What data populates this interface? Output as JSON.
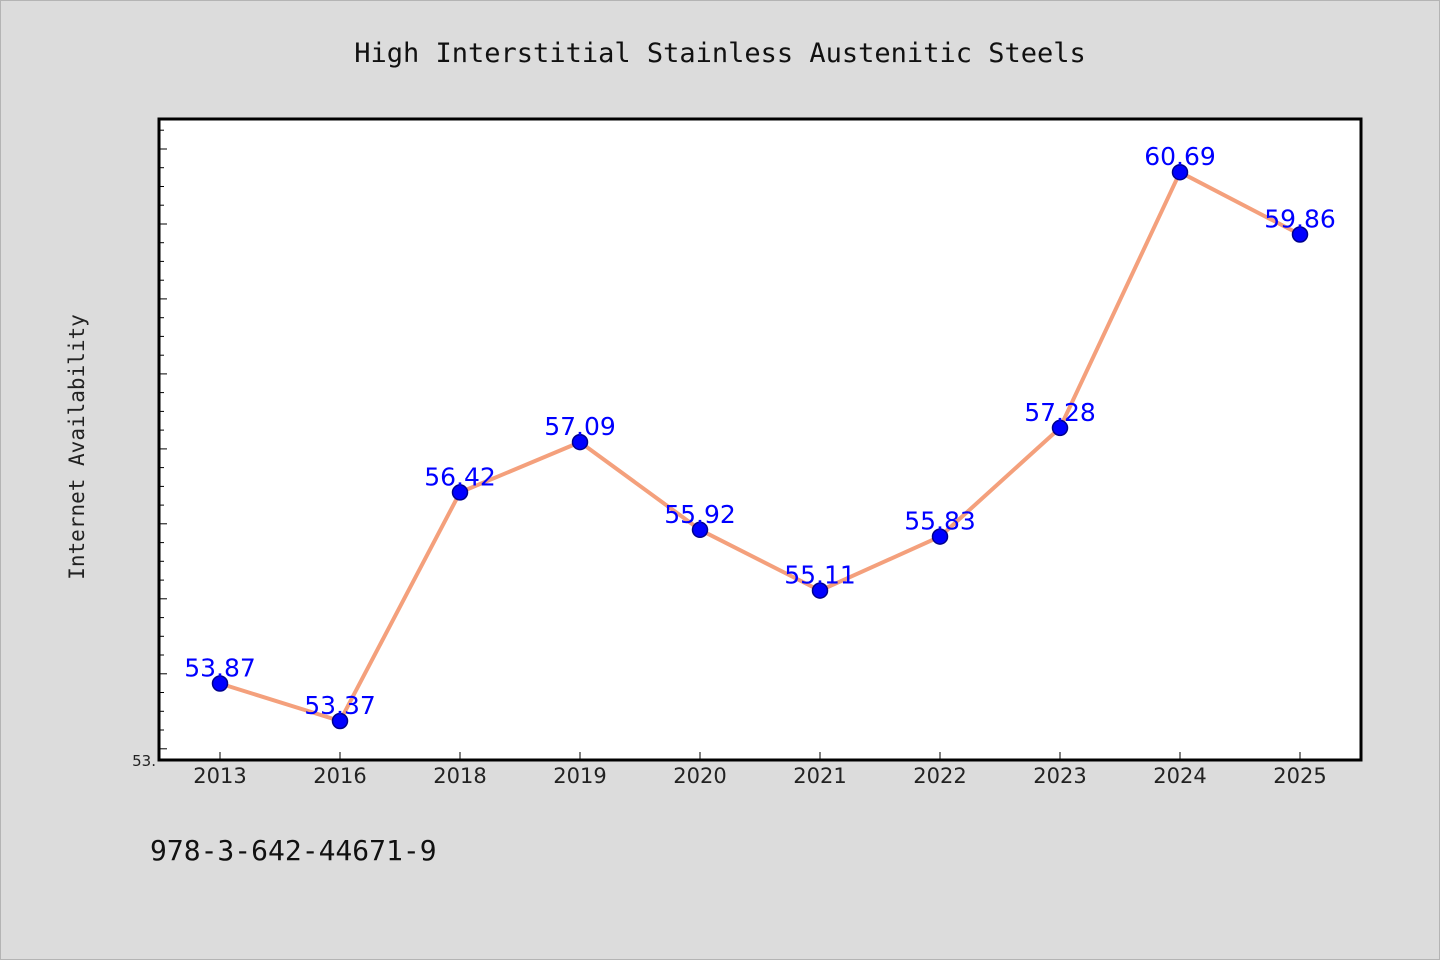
{
  "chart_data": {
    "type": "line",
    "title": "High Interstitial Stainless Austenitic Steels",
    "xlabel": "",
    "ylabel": "Internet Availability",
    "categories": [
      "2013",
      "2016",
      "2018",
      "2019",
      "2020",
      "2021",
      "2022",
      "2023",
      "2024",
      "2025"
    ],
    "series": [
      {
        "values": [
          53.87,
          53.37,
          56.42,
          57.09,
          55.92,
          55.11,
          55.83,
          57.28,
          60.69,
          59.86
        ]
      }
    ],
    "data_labels": [
      "53.87",
      "53.37",
      "56.42",
      "57.09",
      "55.92",
      "55.11",
      "55.83",
      "57.28",
      "60.69",
      "59.86"
    ],
    "y_tick_labels": [
      "53."
    ],
    "ylim": [
      52.85,
      61.4
    ],
    "grid": false,
    "legend": "none",
    "colors": {
      "line": "#f4a07c",
      "marker": "#0000ff",
      "marker_edge": "#00008b",
      "data_label": "#0000ff",
      "plot_background": "#ffffff",
      "figure_background": "#dcdcdc"
    }
  },
  "footnote": "978-3-642-44671-9"
}
